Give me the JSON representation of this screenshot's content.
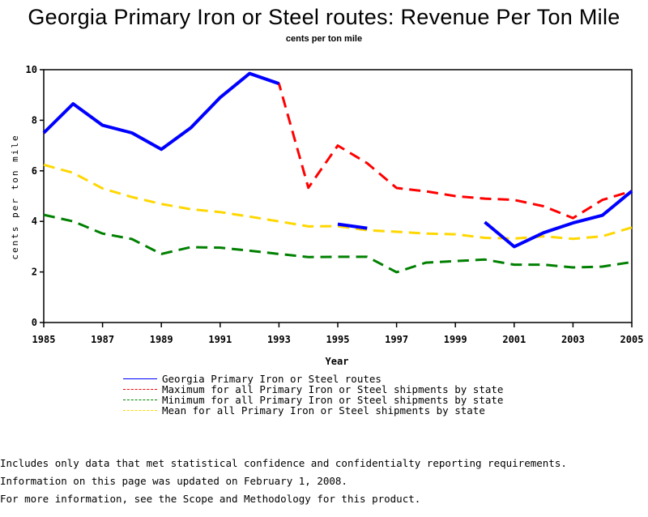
{
  "chart_data": {
    "type": "line",
    "title": "Georgia Primary Iron or Steel routes: Revenue Per Ton Mile",
    "subtitle": "cents per ton mile",
    "xlabel": "Year",
    "ylabel": "cents per ton mile",
    "xlim": [
      1985,
      2005
    ],
    "ylim": [
      0,
      10
    ],
    "x_ticks": [
      "1985",
      "1987",
      "1989",
      "1991",
      "1993",
      "1995",
      "1997",
      "1999",
      "2001",
      "2003",
      "2005"
    ],
    "y_ticks": [
      "0",
      "2",
      "4",
      "6",
      "8",
      "10"
    ],
    "grid": false,
    "legend_position": "bottom",
    "x": [
      1985,
      1986,
      1987,
      1988,
      1989,
      1990,
      1991,
      1992,
      1993,
      1994,
      1995,
      1996,
      1997,
      1998,
      1999,
      2000,
      2001,
      2002,
      2003,
      2004,
      2005
    ],
    "series": [
      {
        "name": "Georgia Primary Iron or Steel routes",
        "color": "#0000ff",
        "style": "solid",
        "values": [
          7.5,
          8.65,
          7.8,
          7.5,
          6.85,
          7.7,
          8.9,
          9.85,
          9.45,
          null,
          3.89,
          3.73,
          null,
          null,
          null,
          3.97,
          3.0,
          3.55,
          3.94,
          4.24,
          5.2
        ]
      },
      {
        "name": "Maximum for all Primary Iron or Steel shipments by state",
        "color": "#ff0000",
        "style": "dashed",
        "values": [
          7.5,
          8.65,
          7.8,
          7.5,
          6.85,
          7.7,
          8.9,
          9.85,
          9.45,
          5.33,
          7.0,
          6.3,
          5.32,
          5.19,
          5.0,
          4.9,
          4.85,
          4.6,
          4.13,
          4.85,
          5.2
        ]
      },
      {
        "name": "Minimum for all Primary Iron or Steel shipments by state",
        "color": "#008000",
        "style": "dashed",
        "values": [
          4.26,
          4.0,
          3.52,
          3.3,
          2.71,
          2.98,
          2.96,
          2.84,
          2.71,
          2.59,
          2.6,
          2.6,
          1.99,
          2.37,
          2.43,
          2.49,
          2.29,
          2.29,
          2.18,
          2.21,
          2.39
        ]
      },
      {
        "name": "Mean for all Primary Iron or Steel shipments by state",
        "color": "#ffd700",
        "style": "dashed",
        "values": [
          6.24,
          5.92,
          5.3,
          4.96,
          4.69,
          4.48,
          4.37,
          4.19,
          4.0,
          3.8,
          3.81,
          3.65,
          3.59,
          3.52,
          3.49,
          3.35,
          3.32,
          3.41,
          3.31,
          3.41,
          3.76
        ]
      }
    ]
  },
  "notes": [
    "Includes only data that met statistical confidence and confidentialty reporting requirements.",
    "For more information, see the Scope and Methodology for this product."
  ],
  "updated": "Information on this page was updated on February 1, 2008."
}
